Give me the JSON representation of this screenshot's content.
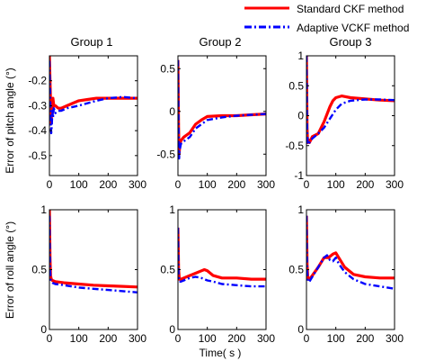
{
  "legend": {
    "position": "top-right",
    "items": [
      {
        "label": "Standard CKF method",
        "color": "#ff0000",
        "style": "solid"
      },
      {
        "label": "Adaptive VCKF method",
        "color": "#0000ff",
        "style": "dash-dot"
      }
    ]
  },
  "column_titles": [
    "Group 1",
    "Group 2",
    "Group 3"
  ],
  "row_labels": [
    "Error of pitch angle (°)",
    "Error of roll angle (°)"
  ],
  "xlabel": "Time( s )",
  "chart_data": [
    {
      "type": "line",
      "title": "Group 1",
      "row": 0,
      "col": 0,
      "ylabel": "Error of pitch angle (°)",
      "xlim": [
        0,
        300
      ],
      "ylim": [
        -0.58,
        -0.1
      ],
      "xticks": [
        0,
        100,
        200,
        300
      ],
      "yticks": [
        -0.5,
        -0.4,
        -0.3,
        -0.2
      ],
      "grid": false,
      "series": [
        {
          "name": "Standard CKF method",
          "color": "#ff0000",
          "x": [
            0,
            2,
            4,
            6,
            8,
            10,
            12,
            15,
            20,
            30,
            40,
            60,
            80,
            100,
            130,
            160,
            200,
            250,
            300
          ],
          "y": [
            -0.1,
            -0.2,
            -0.28,
            -0.37,
            -0.3,
            -0.33,
            -0.27,
            -0.3,
            -0.3,
            -0.31,
            -0.31,
            -0.3,
            -0.29,
            -0.28,
            -0.275,
            -0.27,
            -0.27,
            -0.27,
            -0.27
          ]
        },
        {
          "name": "Adaptive VCKF method",
          "color": "#0000ff",
          "x": [
            0,
            2,
            4,
            6,
            8,
            10,
            12,
            15,
            20,
            30,
            40,
            60,
            80,
            100,
            130,
            160,
            200,
            250,
            300
          ],
          "y": [
            -0.12,
            -0.24,
            -0.35,
            -0.41,
            -0.38,
            -0.32,
            -0.35,
            -0.31,
            -0.33,
            -0.32,
            -0.32,
            -0.31,
            -0.305,
            -0.3,
            -0.29,
            -0.28,
            -0.27,
            -0.265,
            -0.27
          ]
        }
      ]
    },
    {
      "type": "line",
      "title": "Group 2",
      "row": 0,
      "col": 1,
      "xlim": [
        0,
        300
      ],
      "ylim": [
        -0.75,
        0.65
      ],
      "xticks": [
        0,
        100,
        200,
        300
      ],
      "yticks": [
        -0.5,
        0,
        0.5
      ],
      "grid": false,
      "series": [
        {
          "name": "Standard CKF method",
          "color": "#ff0000",
          "x": [
            0,
            2,
            4,
            6,
            10,
            20,
            40,
            60,
            80,
            100,
            150,
            200,
            250,
            300
          ],
          "y": [
            0.6,
            -0.2,
            -0.5,
            -0.4,
            -0.34,
            -0.3,
            -0.25,
            -0.15,
            -0.1,
            -0.06,
            -0.05,
            -0.05,
            -0.04,
            -0.03
          ]
        },
        {
          "name": "Adaptive VCKF method",
          "color": "#0000ff",
          "x": [
            0,
            2,
            4,
            6,
            10,
            20,
            40,
            60,
            80,
            100,
            150,
            200,
            250,
            300
          ],
          "y": [
            0.6,
            -0.2,
            -0.55,
            -0.45,
            -0.38,
            -0.35,
            -0.3,
            -0.2,
            -0.15,
            -0.1,
            -0.07,
            -0.05,
            -0.04,
            -0.03
          ]
        }
      ]
    },
    {
      "type": "line",
      "title": "Group 3",
      "row": 0,
      "col": 2,
      "xlim": [
        0,
        300
      ],
      "ylim": [
        -1,
        1
      ],
      "xticks": [
        0,
        100,
        200,
        300
      ],
      "yticks": [
        -1,
        -0.5,
        0,
        0.5,
        1
      ],
      "grid": false,
      "series": [
        {
          "name": "Standard CKF method",
          "color": "#ff0000",
          "x": [
            0,
            2,
            4,
            6,
            10,
            20,
            40,
            60,
            80,
            90,
            100,
            120,
            150,
            200,
            250,
            300
          ],
          "y": [
            1.0,
            -0.2,
            -0.45,
            -0.4,
            -0.45,
            -0.35,
            -0.3,
            -0.1,
            0.15,
            0.25,
            0.3,
            0.33,
            0.3,
            0.28,
            0.26,
            0.25
          ]
        },
        {
          "name": "Adaptive VCKF method",
          "color": "#0000ff",
          "x": [
            0,
            2,
            4,
            6,
            10,
            20,
            40,
            60,
            80,
            100,
            120,
            150,
            200,
            250,
            300
          ],
          "y": [
            1.0,
            -0.2,
            -0.45,
            -0.42,
            -0.45,
            -0.38,
            -0.3,
            -0.2,
            -0.05,
            0.1,
            0.2,
            0.25,
            0.27,
            0.27,
            0.26
          ]
        }
      ]
    },
    {
      "type": "line",
      "title": "",
      "row": 1,
      "col": 0,
      "ylabel": "Error of roll angle (°)",
      "xlim": [
        0,
        300
      ],
      "ylim": [
        0,
        1
      ],
      "xticks": [
        0,
        100,
        200,
        300
      ],
      "yticks": [
        0,
        0.5,
        1
      ],
      "grid": false,
      "series": [
        {
          "name": "Standard CKF method",
          "color": "#ff0000",
          "x": [
            0,
            2,
            4,
            6,
            10,
            20,
            50,
            100,
            150,
            200,
            250,
            300
          ],
          "y": [
            1.0,
            0.6,
            0.45,
            0.42,
            0.41,
            0.4,
            0.39,
            0.38,
            0.37,
            0.365,
            0.36,
            0.355
          ]
        },
        {
          "name": "Adaptive VCKF method",
          "color": "#0000ff",
          "x": [
            0,
            2,
            4,
            6,
            10,
            20,
            50,
            100,
            150,
            200,
            250,
            300
          ],
          "y": [
            0.95,
            0.5,
            0.42,
            0.4,
            0.39,
            0.38,
            0.37,
            0.35,
            0.34,
            0.33,
            0.32,
            0.31
          ]
        }
      ]
    },
    {
      "type": "line",
      "title": "",
      "row": 1,
      "col": 1,
      "xlim": [
        0,
        300
      ],
      "ylim": [
        0,
        1
      ],
      "xticks": [
        0,
        100,
        200,
        300
      ],
      "yticks": [
        0,
        0.5,
        1
      ],
      "grid": false,
      "series": [
        {
          "name": "Standard CKF method",
          "color": "#ff0000",
          "x": [
            0,
            2,
            5,
            10,
            20,
            40,
            60,
            80,
            90,
            100,
            120,
            150,
            200,
            250,
            300
          ],
          "y": [
            0.85,
            0.5,
            0.42,
            0.42,
            0.43,
            0.45,
            0.47,
            0.49,
            0.5,
            0.49,
            0.45,
            0.43,
            0.43,
            0.42,
            0.42
          ]
        },
        {
          "name": "Adaptive VCKF method",
          "color": "#0000ff",
          "x": [
            0,
            2,
            5,
            10,
            20,
            40,
            60,
            80,
            100,
            120,
            150,
            200,
            250,
            300
          ],
          "y": [
            0.85,
            0.45,
            0.4,
            0.4,
            0.41,
            0.43,
            0.44,
            0.43,
            0.41,
            0.4,
            0.38,
            0.37,
            0.36,
            0.36
          ]
        }
      ]
    },
    {
      "type": "line",
      "title": "",
      "row": 1,
      "col": 2,
      "xlim": [
        0,
        300
      ],
      "ylim": [
        0,
        1
      ],
      "xticks": [
        0,
        100,
        200,
        300
      ],
      "yticks": [
        0,
        0.5,
        1
      ],
      "grid": false,
      "series": [
        {
          "name": "Standard CKF method",
          "color": "#ff0000",
          "x": [
            0,
            2,
            5,
            10,
            20,
            40,
            60,
            75,
            90,
            100,
            110,
            130,
            160,
            200,
            250,
            300
          ],
          "y": [
            0.95,
            0.55,
            0.42,
            0.42,
            0.45,
            0.52,
            0.6,
            0.6,
            0.63,
            0.64,
            0.6,
            0.52,
            0.46,
            0.44,
            0.43,
            0.43
          ]
        },
        {
          "name": "Adaptive VCKF method",
          "color": "#0000ff",
          "x": [
            0,
            2,
            5,
            10,
            20,
            40,
            60,
            70,
            80,
            90,
            100,
            110,
            130,
            160,
            200,
            250,
            300
          ],
          "y": [
            0.95,
            0.5,
            0.4,
            0.4,
            0.44,
            0.52,
            0.6,
            0.62,
            0.58,
            0.57,
            0.6,
            0.55,
            0.48,
            0.42,
            0.38,
            0.36,
            0.34
          ]
        }
      ]
    }
  ]
}
